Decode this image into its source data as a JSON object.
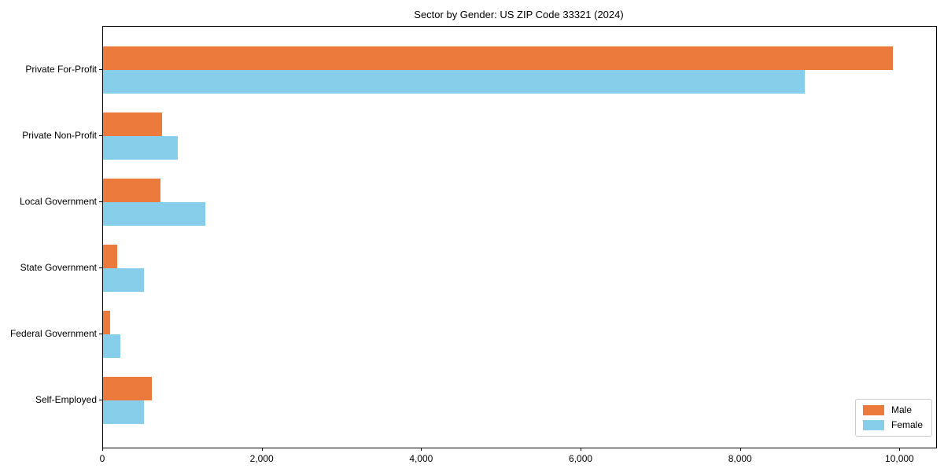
{
  "chart_data": {
    "type": "bar",
    "orientation": "horizontal",
    "title": "Sector by Gender: US ZIP Code 33321 (2024)",
    "categories": [
      "Private For-Profit",
      "Private Non-Profit",
      "Local Government",
      "State Government",
      "Federal Government",
      "Self-Employed"
    ],
    "series": [
      {
        "name": "Male",
        "color": "#EC7A3C",
        "values": [
          9910,
          740,
          720,
          175,
          90,
          610
        ]
      },
      {
        "name": "Female",
        "color": "#87CEEB",
        "values": [
          8800,
          940,
          1280,
          510,
          220,
          510
        ]
      }
    ],
    "xlabel": "",
    "ylabel": "",
    "xlim": [
      0,
      10450
    ],
    "xticks": [
      0,
      2000,
      4000,
      6000,
      8000,
      10000
    ],
    "xtick_labels": [
      "0",
      "2,000",
      "4,000",
      "6,000",
      "8,000",
      "10,000"
    ],
    "grid": false,
    "legend_position": "lower right",
    "axis_color": "#000000",
    "background_color": "#ffffff"
  }
}
